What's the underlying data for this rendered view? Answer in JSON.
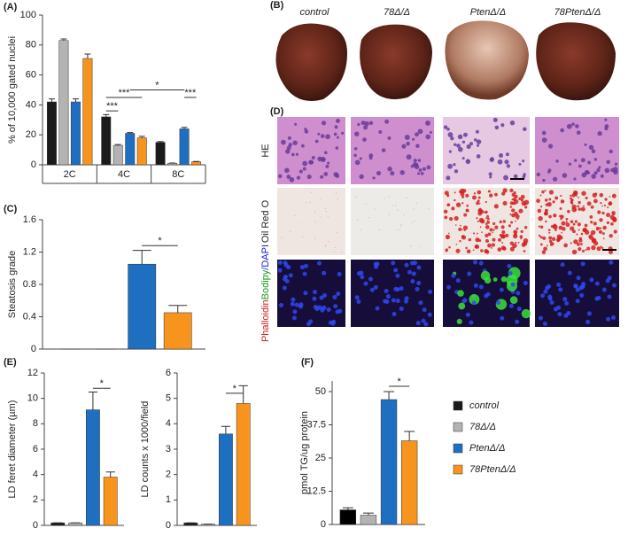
{
  "chart_data": [
    {
      "type": "bar",
      "panel_label": "(A)",
      "y_label": "% of 10,000 gated nuclei",
      "categories": [
        "2C",
        "4C",
        "8C"
      ],
      "series": [
        {
          "name": "control",
          "color": "#1a1a1a",
          "values": [
            42,
            32,
            15
          ],
          "errors": [
            2,
            1.5,
            0.5
          ]
        },
        {
          "name": "78Δ/Δ",
          "color": "#b3b3b3",
          "values": [
            83,
            13,
            1
          ],
          "errors": [
            1,
            0.5,
            0.2
          ]
        },
        {
          "name": "PtenΔ/Δ",
          "color": "#1f6fc1",
          "values": [
            42,
            21,
            24
          ],
          "errors": [
            2,
            0.5,
            1
          ]
        },
        {
          "name": "78PtenΔ/Δ",
          "color": "#f7941d",
          "values": [
            71,
            18,
            2
          ],
          "errors": [
            3,
            1,
            0.2
          ]
        }
      ],
      "ylim": [
        0,
        100
      ],
      "yticks": [
        0,
        20,
        40,
        60,
        80,
        100
      ],
      "annotations": [
        "***",
        "***",
        "*",
        "***"
      ]
    },
    {
      "type": "bar",
      "panel_label": "(C)",
      "y_label": "Steatosis grade",
      "series": [
        {
          "color": "#1a1a1a",
          "values": [
            0
          ],
          "errors": [
            0
          ]
        },
        {
          "color": "#b3b3b3",
          "values": [
            0
          ],
          "errors": [
            0
          ]
        },
        {
          "color": "#1f6fc1",
          "values": [
            1.05
          ],
          "errors": [
            0.17
          ]
        },
        {
          "color": "#f7941d",
          "values": [
            0.45
          ],
          "errors": [
            0.09
          ]
        }
      ],
      "ylim": [
        0,
        1.6
      ],
      "yticks": [
        0,
        0.4,
        0.8,
        1.2,
        1.6
      ],
      "annotations": [
        "*"
      ]
    },
    {
      "type": "bar",
      "panel_label": "(E)",
      "y_label": "LD feret diameter (µm)",
      "series": [
        {
          "color": "#1a1a1a",
          "values": [
            0.2
          ],
          "errors": [
            0
          ]
        },
        {
          "color": "#b3b3b3",
          "values": [
            0.2
          ],
          "errors": [
            0
          ]
        },
        {
          "color": "#1f6fc1",
          "values": [
            9.1
          ],
          "errors": [
            1.4
          ]
        },
        {
          "color": "#f7941d",
          "values": [
            3.8
          ],
          "errors": [
            0.4
          ]
        }
      ],
      "ylim": [
        0,
        12
      ],
      "yticks": [
        0,
        2,
        4,
        6,
        8,
        10,
        12
      ],
      "annotations": [
        "*"
      ]
    },
    {
      "type": "bar",
      "y_label": "LD counts x 1000/field",
      "series": [
        {
          "color": "#1a1a1a",
          "values": [
            0.1
          ],
          "errors": [
            0
          ]
        },
        {
          "color": "#b3b3b3",
          "values": [
            0.05
          ],
          "errors": [
            0
          ]
        },
        {
          "color": "#1f6fc1",
          "values": [
            3.6
          ],
          "errors": [
            0.3
          ]
        },
        {
          "color": "#f7941d",
          "values": [
            4.8
          ],
          "errors": [
            0.7
          ]
        }
      ],
      "ylim": [
        0,
        6
      ],
      "yticks": [
        0,
        1,
        2,
        3,
        4,
        5,
        6
      ],
      "annotations": [
        "*"
      ]
    },
    {
      "type": "bar",
      "panel_label": "(F)",
      "y_label": "pmol TG/ug protein",
      "series": [
        {
          "color": "#000000",
          "values": [
            5.5
          ],
          "errors": [
            0.8
          ]
        },
        {
          "color": "#b3b3b3",
          "values": [
            3.5
          ],
          "errors": [
            0.8
          ]
        },
        {
          "color": "#1f6fc1",
          "values": [
            47
          ],
          "errors": [
            3
          ]
        },
        {
          "color": "#f7941d",
          "values": [
            31.5
          ],
          "errors": [
            3.5
          ]
        }
      ],
      "ylim": [
        0,
        54
      ],
      "yticks": [
        0,
        12.5,
        25,
        37.5,
        50
      ],
      "annotations": [
        "*"
      ]
    }
  ],
  "images": {
    "B": {
      "panel_label": "(B)",
      "labels": [
        "control",
        "78Δ/Δ",
        "PtenΔ/Δ",
        "78PtenΔ/Δ"
      ]
    },
    "D": {
      "panel_label": "(D)",
      "rows": [
        "HE",
        "Oil Red O"
      ],
      "stain": [
        "Phalloidin",
        "Bodipy",
        "/DAPI"
      ]
    }
  }
}
